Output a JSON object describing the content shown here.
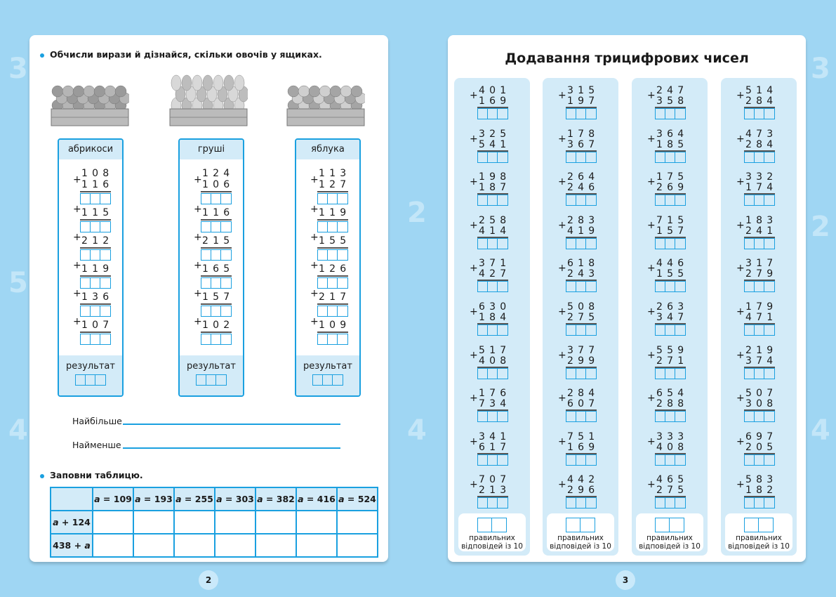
{
  "left_page": {
    "instruction": "Обчисли вирази й дізнайся, скільки овочів у ящиках.",
    "columns": [
      {
        "label": "абрикоси",
        "first": "108",
        "addends": [
          "116",
          "115",
          "212",
          "119",
          "136",
          "107"
        ]
      },
      {
        "label": "груші",
        "first": "124",
        "addends": [
          "106",
          "116",
          "215",
          "165",
          "157",
          "102"
        ]
      },
      {
        "label": "яблука",
        "first": "113",
        "addends": [
          "127",
          "119",
          "155",
          "126",
          "217",
          "109"
        ]
      }
    ],
    "result_label": "результат",
    "largest_label": "Найбільше",
    "smallest_label": "Найменше",
    "table_instruction": "Заповни таблицю.",
    "table": {
      "headers": [
        "109",
        "193",
        "255",
        "303",
        "382",
        "416",
        "524"
      ],
      "header_prefix": "a = ",
      "rows": [
        {
          "label_var": "a",
          "label_rest": " + 124",
          "var_first": true
        },
        {
          "label_var": "a",
          "label_rest": "438 + ",
          "var_first": false
        }
      ]
    },
    "page_number": "2"
  },
  "right_page": {
    "title": "Додавання трицифрових чисел",
    "columns": [
      [
        [
          "401",
          "169"
        ],
        [
          "325",
          "541"
        ],
        [
          "198",
          "187"
        ],
        [
          "258",
          "414"
        ],
        [
          "371",
          "427"
        ],
        [
          "630",
          "184"
        ],
        [
          "517",
          "408"
        ],
        [
          "176",
          "734"
        ],
        [
          "341",
          "617"
        ],
        [
          "707",
          "213"
        ]
      ],
      [
        [
          "315",
          "197"
        ],
        [
          "178",
          "367"
        ],
        [
          "264",
          "246"
        ],
        [
          "283",
          "419"
        ],
        [
          "618",
          "243"
        ],
        [
          "508",
          "275"
        ],
        [
          "377",
          "299"
        ],
        [
          "284",
          "607"
        ],
        [
          "751",
          "169"
        ],
        [
          "442",
          "296"
        ]
      ],
      [
        [
          "247",
          "358"
        ],
        [
          "364",
          "185"
        ],
        [
          "175",
          "269"
        ],
        [
          "715",
          "157"
        ],
        [
          "446",
          "155"
        ],
        [
          "263",
          "347"
        ],
        [
          "559",
          "271"
        ],
        [
          "654",
          "288"
        ],
        [
          "333",
          "408"
        ],
        [
          "465",
          "275"
        ]
      ],
      [
        [
          "514",
          "284"
        ],
        [
          "473",
          "284"
        ],
        [
          "332",
          "174"
        ],
        [
          "183",
          "241"
        ],
        [
          "317",
          "279"
        ],
        [
          "179",
          "471"
        ],
        [
          "219",
          "374"
        ],
        [
          "507",
          "308"
        ],
        [
          "697",
          "205"
        ],
        [
          "583",
          "182"
        ]
      ]
    ],
    "footer_line1": "правильних",
    "footer_line2": "відповідей із 10",
    "page_number": "3"
  },
  "colors": {
    "accent": "#1aa0e0",
    "panel": "#d3ebf8",
    "background": "#9fd6f3"
  },
  "icons": [
    "fruit-crate-apricots",
    "fruit-crate-pears",
    "fruit-crate-apples"
  ]
}
